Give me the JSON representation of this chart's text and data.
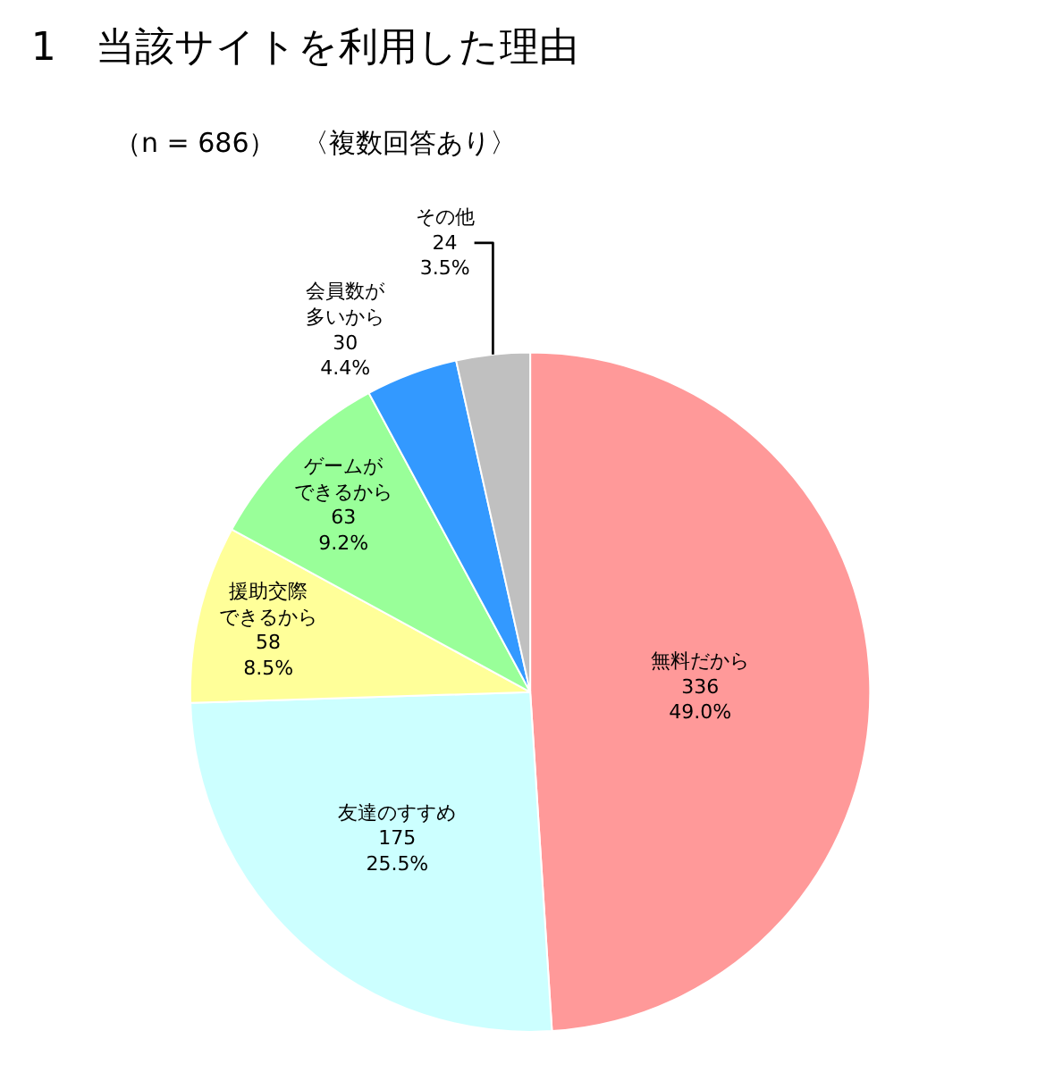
{
  "chart_data": {
    "type": "pie",
    "title": "1　当該サイトを利用した理由",
    "subtitle": "（n = 686）　〈複数回答あり〉",
    "categories": [
      "無料だから",
      "友達のすすめ",
      "援助交際できるから",
      "ゲームができるから",
      "会員数が多いから",
      "その他"
    ],
    "values": [
      336,
      175,
      58,
      63,
      30,
      24
    ],
    "colors": [
      "#ff9999",
      "#ccffff",
      "#ffff99",
      "#99ff99",
      "#3399ff",
      "#c0c0c0"
    ],
    "value_labels": [
      "336\n49.0%",
      "175\n25.5%",
      "58\n8.5%",
      "63\n9.2%",
      "30\n4.4%",
      "24\n3.5%"
    ],
    "legend": false
  }
}
